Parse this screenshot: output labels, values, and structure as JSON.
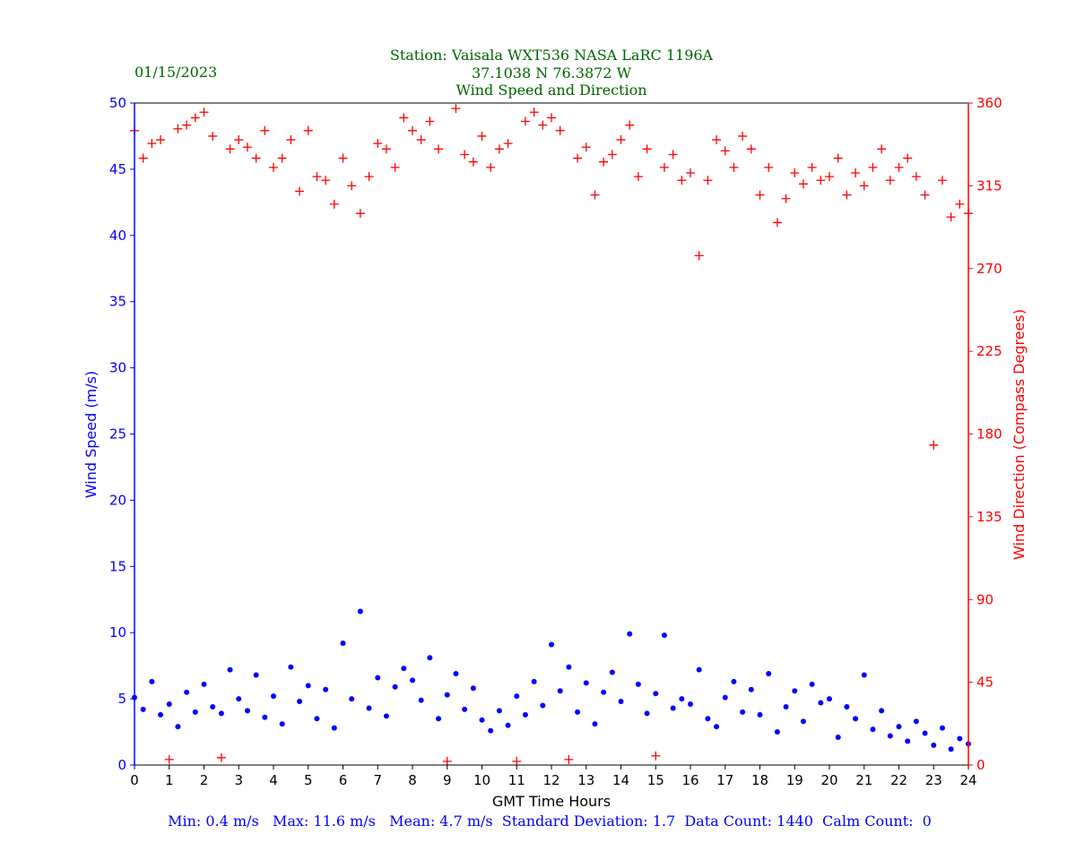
{
  "header": {
    "date": "01/15/2023",
    "station": "Station:  Vaisala WXT536  NASA LaRC 1196A",
    "coords": "37.1038 N 76.3872 W",
    "title": "Wind Speed and Direction"
  },
  "footer": {
    "stats": "Min: 0.4 m/s   Max: 11.6 m/s   Mean: 4.7 m/s  Standard Deviation: 1.7  Data Count: 1440  Calm Count:  0"
  },
  "chart_data": {
    "type": "scatter",
    "title": "Wind Speed and Direction",
    "xlabel": "GMT Time Hours",
    "ylabel": "Wind Speed (m/s)",
    "y2label": "Wind Direction (Compass Degrees)",
    "xlim": [
      0,
      24
    ],
    "ylim": [
      0,
      50
    ],
    "y2lim": [
      0,
      360
    ],
    "xticks": [
      "0",
      "1",
      "2",
      "3",
      "4",
      "5",
      "6",
      "7",
      "8",
      "9",
      "10",
      "11",
      "12",
      "13",
      "14",
      "15",
      "16",
      "17",
      "18",
      "19",
      "20",
      "21",
      "22",
      "23",
      "24"
    ],
    "yticks": [
      "0",
      "5",
      "10",
      "15",
      "20",
      "25",
      "30",
      "35",
      "40",
      "45",
      "50"
    ],
    "y2ticks": [
      "0",
      "45",
      "90",
      "135",
      "180",
      "225",
      "270",
      "315",
      "360"
    ],
    "grid": false,
    "x_start_hours": 0,
    "interval_hours": 0.25,
    "colors": {
      "speed": "#0000ff",
      "direction": "#ff0000",
      "title": "#006400",
      "stats": "#0000ff"
    },
    "series": [
      {
        "name": "Wind Speed (m/s)",
        "axis": "left",
        "marker": "dot",
        "values": [
          5.1,
          4.2,
          6.3,
          3.8,
          4.6,
          2.9,
          5.5,
          4.0,
          6.1,
          4.4,
          3.9,
          7.2,
          5.0,
          4.1,
          6.8,
          3.6,
          5.2,
          3.1,
          7.4,
          4.8,
          6.0,
          3.5,
          5.7,
          2.8,
          9.2,
          5.0,
          11.6,
          4.3,
          6.6,
          3.7,
          5.9,
          7.3,
          6.4,
          4.9,
          8.1,
          3.5,
          5.3,
          6.9,
          4.2,
          5.8,
          3.4,
          2.6,
          4.1,
          3.0,
          5.2,
          3.8,
          6.3,
          4.5,
          9.1,
          5.6,
          7.4,
          4.0,
          6.2,
          3.1,
          5.5,
          7.0,
          4.8,
          9.9,
          6.1,
          3.9,
          5.4,
          9.8,
          4.3,
          5.0,
          4.6,
          7.2,
          3.5,
          2.9,
          5.1,
          6.3,
          4.0,
          5.7,
          3.8,
          6.9,
          2.5,
          4.4,
          5.6,
          3.3,
          6.1,
          4.7,
          5.0,
          2.1,
          4.4,
          3.5,
          6.8,
          2.7,
          4.1,
          2.2,
          2.9,
          1.8,
          3.3,
          2.4,
          1.5,
          2.8,
          1.2,
          2.0,
          1.6
        ]
      },
      {
        "name": "Wind Direction (Compass Degrees)",
        "axis": "right",
        "marker": "plus",
        "values": [
          345,
          330,
          338,
          340,
          3,
          346,
          348,
          352,
          355,
          342,
          4,
          335,
          340,
          336,
          330,
          345,
          325,
          330,
          340,
          312,
          345,
          320,
          318,
          305,
          330,
          315,
          300,
          320,
          338,
          335,
          325,
          352,
          345,
          340,
          350,
          335,
          2,
          357,
          332,
          328,
          342,
          325,
          335,
          338,
          2,
          350,
          355,
          348,
          352,
          345,
          3,
          330,
          336,
          310,
          328,
          332,
          340,
          348,
          320,
          335,
          5,
          325,
          332,
          318,
          322,
          277,
          318,
          340,
          334,
          325,
          342,
          335,
          310,
          325,
          295,
          308,
          322,
          316,
          325,
          318,
          320,
          330,
          310,
          322,
          315,
          325,
          335,
          318,
          325,
          330,
          320,
          310,
          174,
          318,
          298,
          305,
          300
        ]
      }
    ]
  }
}
